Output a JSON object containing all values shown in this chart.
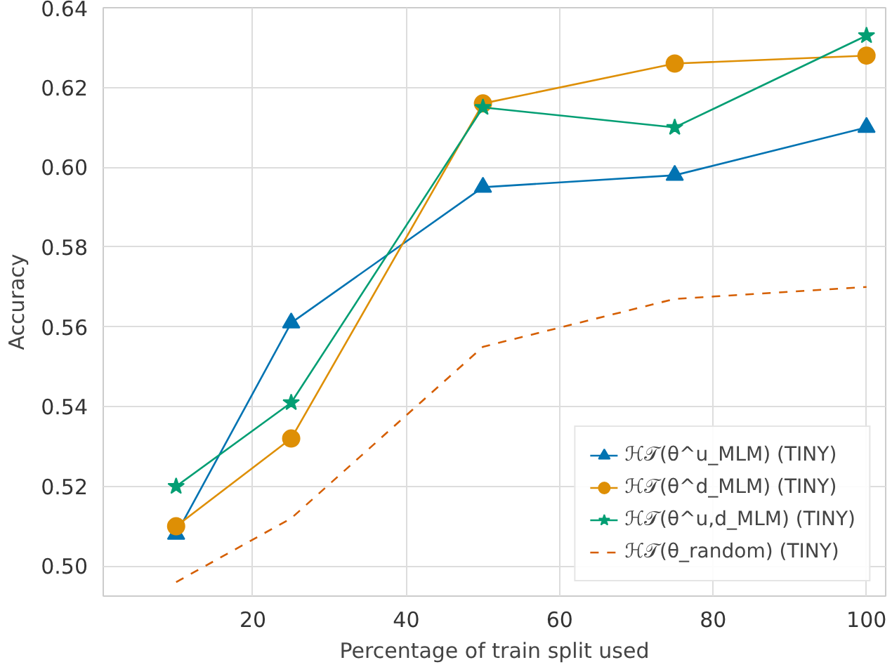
{
  "chart_data": {
    "type": "line",
    "xlabel": "Percentage of train split used",
    "ylabel": "Accuracy",
    "x": [
      10,
      25,
      50,
      75,
      100
    ],
    "xlim": [
      0.5,
      102.5
    ],
    "xticks": [
      20,
      40,
      60,
      80,
      100
    ],
    "ylim": [
      0.4925,
      0.64
    ],
    "yticks": [
      {
        "value": 0.5,
        "label": "0.50"
      },
      {
        "value": 0.52,
        "label": "0.52"
      },
      {
        "value": 0.54,
        "label": "0.54"
      },
      {
        "value": 0.56,
        "label": "0.56"
      },
      {
        "value": 0.58,
        "label": "0.58"
      },
      {
        "value": 0.6,
        "label": "0.60"
      },
      {
        "value": 0.62,
        "label": "0.62"
      },
      {
        "value": 0.64,
        "label": "0.64"
      }
    ],
    "grid": true,
    "legend": "bottom right",
    "series": [
      {
        "name": "ℋ𝒯(θ^u_MLM) (TINY)",
        "color": "#0173b2",
        "marker": "triangle",
        "line_style": "solid",
        "values": [
          0.508,
          0.561,
          0.595,
          0.598,
          0.61
        ]
      },
      {
        "name": "ℋ𝒯(θ^d_MLM) (TINY)",
        "color": "#de8f05",
        "marker": "circle",
        "line_style": "solid",
        "values": [
          0.51,
          0.532,
          0.616,
          0.626,
          0.628
        ]
      },
      {
        "name": "ℋ𝒯(θ^u,d_MLM) (TINY)",
        "color": "#029e73",
        "marker": "star",
        "line_style": "solid",
        "values": [
          0.52,
          0.541,
          0.615,
          0.61,
          0.633
        ]
      },
      {
        "name": "ℋ𝒯(θ_random) (TINY)",
        "color": "#d55e00",
        "marker": "none",
        "line_style": "dashed",
        "values": [
          0.496,
          0.512,
          0.555,
          0.567,
          0.57
        ]
      }
    ]
  }
}
